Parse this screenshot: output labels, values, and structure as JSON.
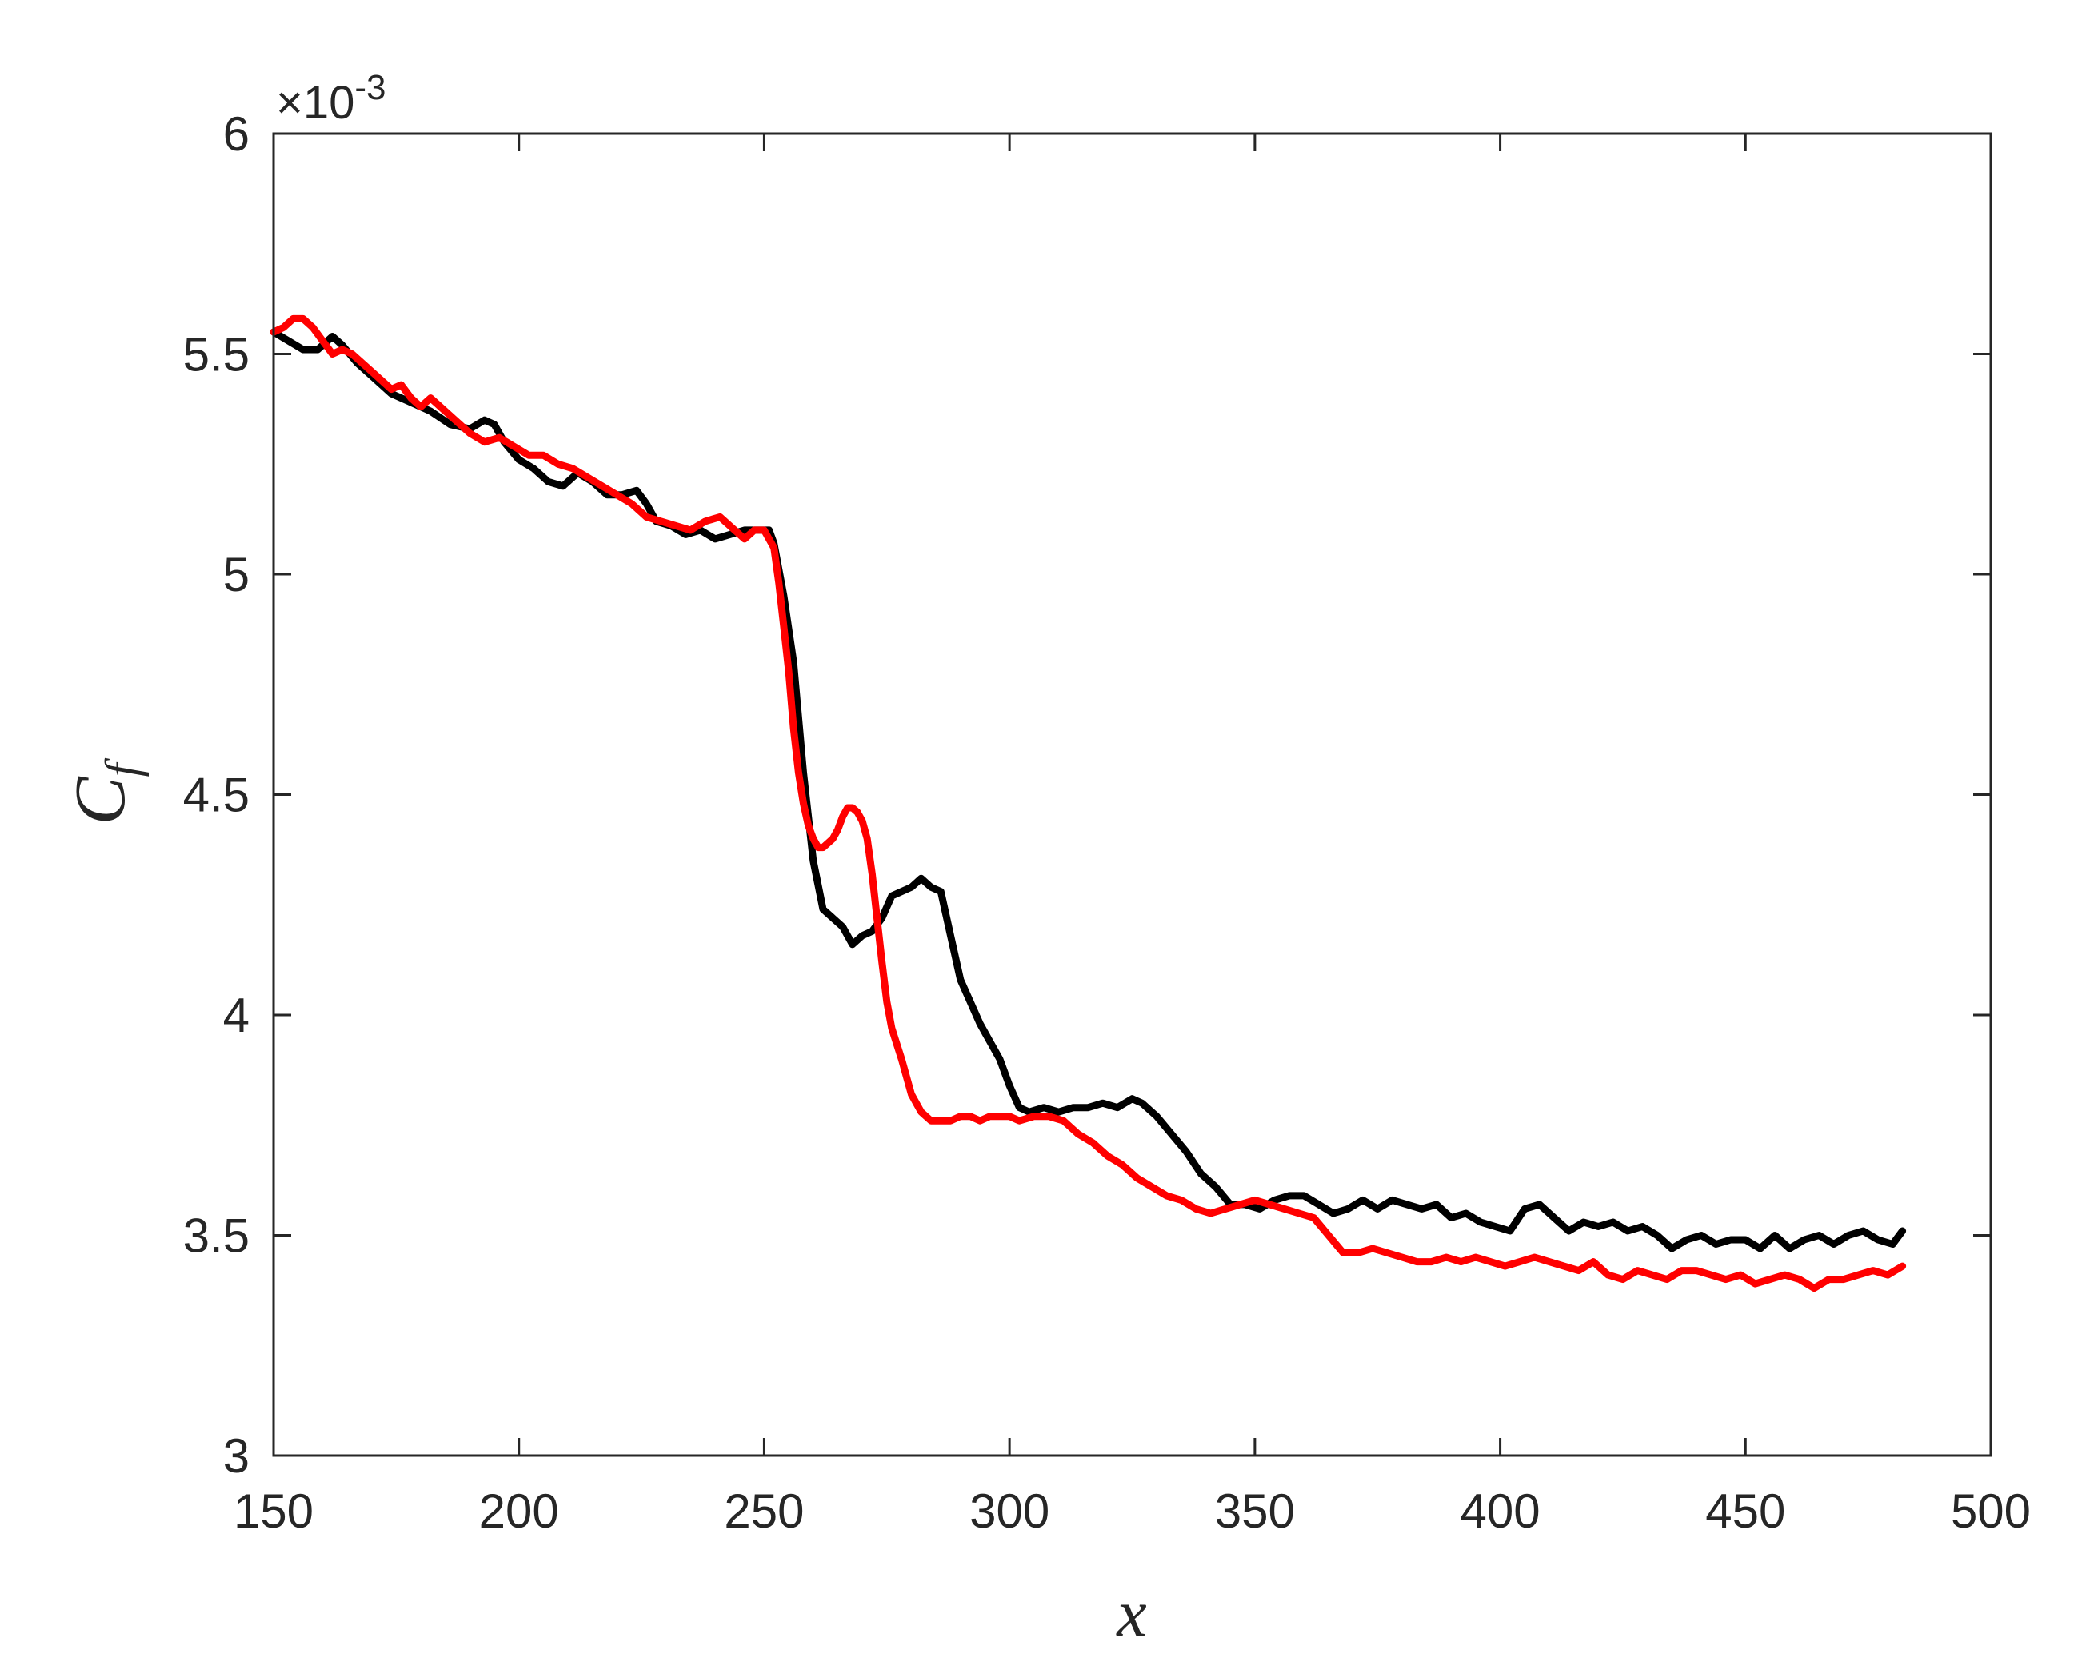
{
  "chart_data": {
    "type": "line",
    "title": "",
    "xlabel": "x",
    "ylabel": "C_f",
    "ylabel_main": "C",
    "ylabel_sub": "f",
    "y_exponent": {
      "base": "×10",
      "power": "-3"
    },
    "xlim": [
      150,
      500
    ],
    "ylim": [
      3.0,
      6.0
    ],
    "y_scale_factor": 0.001,
    "xticks": [
      150,
      200,
      250,
      300,
      350,
      400,
      450,
      500
    ],
    "xtick_labels": [
      "150",
      "200",
      "250",
      "300",
      "350",
      "400",
      "450",
      "500"
    ],
    "yticks": [
      3,
      3.5,
      4,
      4.5,
      5,
      5.5,
      6
    ],
    "ytick_labels": [
      "3",
      "3.5",
      "4",
      "4.5",
      "5",
      "5.5",
      "6"
    ],
    "grid": false,
    "legend": "none",
    "series": [
      {
        "color": "#000000",
        "x": [
          150,
          153,
          156,
          159,
          162,
          164,
          167,
          170,
          174,
          178,
          182,
          186,
          190,
          193,
          195,
          197,
          200,
          203,
          206,
          209,
          212,
          215,
          218,
          221,
          224,
          226,
          228,
          231,
          234,
          237,
          240,
          243,
          246,
          249,
          251,
          252,
          254,
          256,
          258,
          260,
          262,
          264,
          266,
          268,
          270,
          272,
          274,
          276,
          278,
          280,
          282,
          284,
          286,
          288,
          290,
          292,
          294,
          296,
          298,
          300,
          302,
          304,
          307,
          310,
          313,
          316,
          319,
          322,
          325,
          327,
          330,
          333,
          336,
          339,
          342,
          345,
          348,
          351,
          354,
          357,
          360,
          363,
          366,
          369,
          372,
          375,
          378,
          381,
          384,
          387,
          390,
          393,
          396,
          399,
          402,
          405,
          408,
          411,
          414,
          417,
          420,
          423,
          426,
          429,
          432,
          435,
          438,
          441,
          444,
          447,
          450,
          453,
          456,
          459,
          462,
          465,
          468,
          471,
          474,
          477,
          480,
          482
        ],
        "y": [
          5.55,
          5.53,
          5.51,
          5.51,
          5.54,
          5.52,
          5.48,
          5.45,
          5.41,
          5.39,
          5.37,
          5.34,
          5.33,
          5.35,
          5.34,
          5.3,
          5.26,
          5.24,
          5.21,
          5.2,
          5.23,
          5.21,
          5.18,
          5.18,
          5.19,
          5.16,
          5.12,
          5.11,
          5.09,
          5.1,
          5.08,
          5.09,
          5.1,
          5.1,
          5.1,
          5.07,
          4.95,
          4.8,
          4.55,
          4.35,
          4.24,
          4.22,
          4.2,
          4.16,
          4.18,
          4.19,
          4.22,
          4.27,
          4.28,
          4.29,
          4.31,
          4.29,
          4.28,
          4.18,
          4.08,
          4.03,
          3.98,
          3.94,
          3.9,
          3.84,
          3.79,
          3.78,
          3.79,
          3.78,
          3.79,
          3.79,
          3.8,
          3.79,
          3.81,
          3.8,
          3.77,
          3.73,
          3.69,
          3.64,
          3.61,
          3.57,
          3.57,
          3.56,
          3.58,
          3.59,
          3.59,
          3.57,
          3.55,
          3.56,
          3.58,
          3.56,
          3.58,
          3.57,
          3.56,
          3.57,
          3.54,
          3.55,
          3.53,
          3.52,
          3.51,
          3.56,
          3.57,
          3.54,
          3.51,
          3.53,
          3.52,
          3.53,
          3.51,
          3.52,
          3.5,
          3.47,
          3.49,
          3.5,
          3.48,
          3.49,
          3.49,
          3.47,
          3.5,
          3.47,
          3.49,
          3.5,
          3.48,
          3.5,
          3.51,
          3.49,
          3.48,
          3.51
        ]
      },
      {
        "color": "#ff0000",
        "x": [
          150,
          152,
          154,
          156,
          158,
          160,
          162,
          164,
          166,
          168,
          170,
          172,
          174,
          176,
          178,
          180,
          182,
          184,
          187,
          190,
          193,
          196,
          199,
          202,
          205,
          208,
          211,
          214,
          217,
          220,
          223,
          226,
          229,
          232,
          235,
          238,
          241,
          244,
          246,
          248,
          250,
          252,
          253,
          254,
          255,
          256,
          257,
          258,
          259,
          260,
          261,
          262,
          263,
          264,
          265,
          266,
          267,
          268,
          269,
          270,
          271,
          272,
          273,
          274,
          275,
          276,
          278,
          280,
          282,
          284,
          286,
          288,
          290,
          292,
          294,
          296,
          298,
          300,
          302,
          305,
          308,
          311,
          314,
          317,
          320,
          323,
          326,
          329,
          332,
          335,
          338,
          341,
          344,
          347,
          350,
          353,
          356,
          359,
          362,
          365,
          368,
          371,
          374,
          377,
          380,
          383,
          386,
          389,
          392,
          395,
          398,
          401,
          404,
          407,
          410,
          413,
          416,
          419,
          422,
          425,
          428,
          431,
          434,
          437,
          440,
          443,
          446,
          449,
          452,
          455,
          458,
          461,
          464,
          467,
          470,
          473,
          476,
          479,
          482
        ],
        "y": [
          5.55,
          5.56,
          5.58,
          5.58,
          5.56,
          5.53,
          5.5,
          5.51,
          5.5,
          5.48,
          5.46,
          5.44,
          5.42,
          5.43,
          5.4,
          5.38,
          5.4,
          5.38,
          5.35,
          5.32,
          5.3,
          5.31,
          5.29,
          5.27,
          5.27,
          5.25,
          5.24,
          5.22,
          5.2,
          5.18,
          5.16,
          5.13,
          5.12,
          5.11,
          5.1,
          5.12,
          5.13,
          5.1,
          5.08,
          5.1,
          5.1,
          5.06,
          4.98,
          4.88,
          4.78,
          4.65,
          4.55,
          4.48,
          4.43,
          4.4,
          4.38,
          4.38,
          4.39,
          4.4,
          4.42,
          4.45,
          4.47,
          4.47,
          4.46,
          4.44,
          4.4,
          4.32,
          4.22,
          4.12,
          4.03,
          3.97,
          3.9,
          3.82,
          3.78,
          3.76,
          3.76,
          3.76,
          3.77,
          3.77,
          3.76,
          3.77,
          3.77,
          3.77,
          3.76,
          3.77,
          3.77,
          3.76,
          3.73,
          3.71,
          3.68,
          3.66,
          3.63,
          3.61,
          3.59,
          3.58,
          3.56,
          3.55,
          3.56,
          3.57,
          3.58,
          3.57,
          3.56,
          3.55,
          3.54,
          3.5,
          3.46,
          3.46,
          3.47,
          3.46,
          3.45,
          3.44,
          3.44,
          3.45,
          3.44,
          3.45,
          3.44,
          3.43,
          3.44,
          3.45,
          3.44,
          3.43,
          3.42,
          3.44,
          3.41,
          3.4,
          3.42,
          3.41,
          3.4,
          3.42,
          3.42,
          3.41,
          3.4,
          3.41,
          3.39,
          3.4,
          3.41,
          3.4,
          3.38,
          3.4,
          3.4,
          3.41,
          3.42,
          3.41,
          3.43
        ]
      }
    ]
  }
}
